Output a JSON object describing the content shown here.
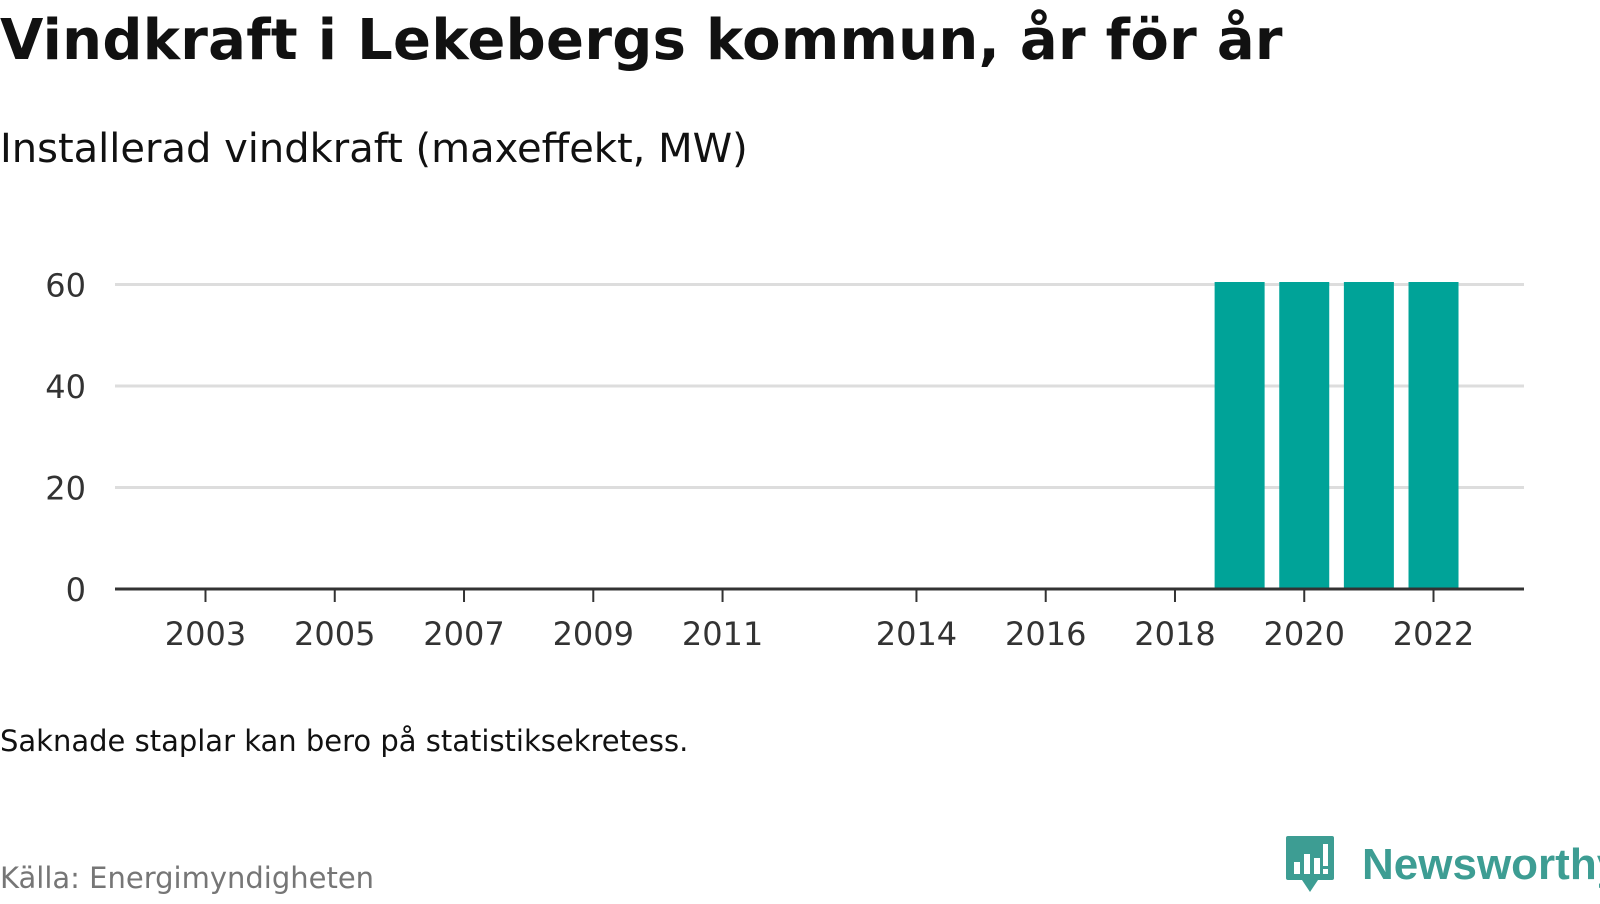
{
  "title": "Vindkraft i Lekebergs kommun, år för år",
  "subtitle": "Installerad vindkraft (maxeffekt, MW)",
  "note": "Saknade staplar kan bero på statistiksekretess.",
  "source": "Källa: Energimyndigheten",
  "brand": {
    "name": "Newsworthy",
    "icon": "newsworthy-logo-icon",
    "color": "#3d9d93"
  },
  "chart_data": {
    "type": "bar",
    "x_ticks": [
      "2003",
      "2005",
      "2007",
      "2009",
      "2011",
      "2014",
      "2016",
      "2018",
      "2020",
      "2022"
    ],
    "categories": [
      "2019",
      "2020",
      "2021",
      "2022"
    ],
    "values": [
      60.5,
      60.5,
      60.5,
      60.5
    ],
    "y_ticks": [
      0,
      20,
      40,
      60
    ],
    "ylim": [
      0,
      60.5
    ],
    "xlim": [
      2001.6,
      2023.4
    ],
    "xlabel": "",
    "ylabel": "",
    "grid": true,
    "bar_color": "#00a398",
    "grid_color": "#dddddd",
    "axis_color": "#333333"
  }
}
